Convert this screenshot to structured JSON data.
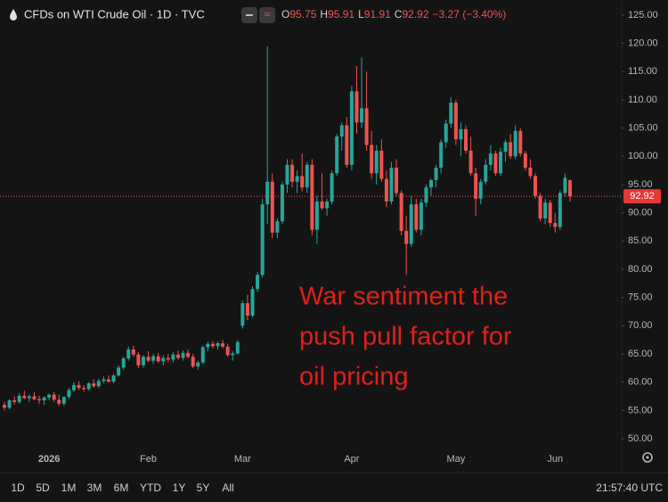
{
  "header": {
    "title": "CFDs on WTI Crude Oil · 1D · TVC",
    "ohlc": [
      {
        "key": "O",
        "value": 95.75
      },
      {
        "key": "H",
        "value": 95.91
      },
      {
        "key": "L",
        "value": 91.91
      },
      {
        "key": "C",
        "value": 92.92
      }
    ],
    "change": "−3.27 (−3.40%)"
  },
  "toolbar": {
    "ranges": [
      "1D",
      "5D",
      "1M",
      "3M",
      "6M",
      "YTD",
      "1Y",
      "5Y",
      "All"
    ],
    "clock": "21:57:40 UTC"
  },
  "chart_data": {
    "type": "candlestick",
    "annotation": [
      "War sentiment the",
      "push pull factor for",
      "oil pricing"
    ],
    "up_color": "#26a69a",
    "down_color": "#ef5350",
    "last_price": 92.92,
    "ylim": [
      47.95,
      127.68
    ],
    "yticks": [
      {
        "value": 50,
        "label": "50.00"
      },
      {
        "value": 55,
        "label": "55.00"
      },
      {
        "value": 60,
        "label": "60.00"
      },
      {
        "value": 65,
        "label": "65.00"
      },
      {
        "value": 70,
        "label": "70.00"
      },
      {
        "value": 75,
        "label": "75.00"
      },
      {
        "value": 80,
        "label": "80.00"
      },
      {
        "value": 85,
        "label": "85.00"
      },
      {
        "value": 90,
        "label": "90.00"
      },
      {
        "value": 95,
        "label": "95.00"
      },
      {
        "value": 100,
        "label": "100.00"
      },
      {
        "value": 105,
        "label": "105.00"
      },
      {
        "value": 110,
        "label": "110.00"
      },
      {
        "value": 115,
        "label": "115.00"
      },
      {
        "value": 120,
        "label": "120.00"
      },
      {
        "value": 125,
        "label": "125.00"
      }
    ],
    "categories": [
      null,
      null,
      null,
      null,
      null,
      null,
      null,
      null,
      null,
      "2026",
      null,
      null,
      null,
      null,
      null,
      null,
      null,
      null,
      null,
      null,
      null,
      null,
      null,
      null,
      null,
      null,
      null,
      null,
      null,
      "Feb",
      null,
      null,
      null,
      null,
      null,
      null,
      null,
      null,
      null,
      null,
      null,
      null,
      null,
      null,
      null,
      null,
      null,
      null,
      "Mar",
      null,
      null,
      null,
      null,
      null,
      null,
      null,
      null,
      null,
      null,
      null,
      null,
      null,
      null,
      null,
      null,
      null,
      null,
      null,
      null,
      null,
      "Apr",
      null,
      null,
      null,
      null,
      null,
      null,
      null,
      null,
      null,
      null,
      null,
      null,
      null,
      null,
      null,
      null,
      null,
      null,
      null,
      null,
      "May",
      null,
      null,
      null,
      null,
      null,
      null,
      null,
      null,
      null,
      null,
      null,
      null,
      null,
      null,
      null,
      null,
      null,
      null,
      null,
      "Jun",
      null,
      null,
      null
    ],
    "open": [
      56,
      55.5,
      56.8,
      56.5,
      57.6,
      57.2,
      57.5,
      57,
      56.8,
      57.3,
      57.8,
      56.9,
      56.2,
      57.4,
      58.6,
      59.5,
      59,
      58.8,
      59.8,
      59.3,
      60.2,
      60.5,
      60.1,
      61.2,
      62.6,
      64.2,
      65.8,
      64.9,
      63,
      64.5,
      63.8,
      64.6,
      63.7,
      64.3,
      64,
      64.9,
      64.3,
      65.2,
      64.5,
      62.8,
      63.5,
      66.2,
      66.8,
      66.4,
      66.9,
      66.3,
      64.8,
      65.1,
      70,
      74,
      71.8,
      76.5,
      79,
      91.5,
      95.5,
      86.5,
      88.5,
      95,
      98.5,
      95.5,
      96.5,
      94.5,
      98.5,
      87,
      92,
      90.8,
      92,
      97,
      103.5,
      105.5,
      98.5,
      111.5,
      106,
      108.5,
      102,
      97,
      101,
      96,
      92,
      98,
      93.5,
      86.8,
      84.5,
      91.5,
      87,
      91.8,
      94.5,
      95.8,
      98,
      102.5,
      105.8,
      109.5,
      103,
      104.8,
      101,
      97,
      92.5,
      95.5,
      98.5,
      100.5,
      97,
      100.8,
      102.5,
      100,
      104.5,
      100.5,
      98,
      96.5,
      93,
      89,
      91.8,
      88.2,
      87.5,
      93.5,
      95.75
    ],
    "high": [
      56.5,
      57,
      57.5,
      58,
      58.5,
      57.8,
      58.2,
      57.6,
      57.5,
      58,
      58.3,
      57.8,
      57.5,
      59,
      60,
      60.2,
      59.5,
      60,
      60.5,
      60.6,
      61,
      61.2,
      61.5,
      63,
      64.5,
      66.3,
      66.5,
      65.3,
      64.8,
      65.5,
      65,
      65.2,
      64.8,
      65,
      65.3,
      65.6,
      65.6,
      65.8,
      65,
      63.8,
      66.5,
      67.2,
      67.3,
      67.2,
      67.5,
      66.8,
      65.5,
      67.5,
      74.5,
      75.5,
      77,
      79.5,
      92.5,
      119.5,
      97,
      89,
      95.5,
      99.5,
      99.5,
      97.5,
      100.5,
      99,
      99.5,
      93,
      97,
      92.5,
      97.5,
      104,
      106,
      107,
      112.5,
      116,
      117.5,
      115,
      104.5,
      102,
      103,
      97.5,
      99,
      99.5,
      94,
      89.5,
      93,
      92.5,
      92.5,
      95,
      96,
      98.5,
      103,
      106.5,
      110.5,
      110,
      106,
      105.5,
      103.5,
      98,
      96,
      99.5,
      102,
      101,
      101.5,
      103,
      104,
      105.5,
      105,
      101,
      99.5,
      97,
      93.5,
      92.5,
      92.3,
      90,
      94,
      97,
      95.91
    ],
    "low": [
      55,
      55.2,
      56,
      56.2,
      57,
      56.5,
      56.8,
      56.2,
      56,
      56.8,
      56.5,
      55.8,
      55.8,
      57,
      58.2,
      58.6,
      58.3,
      58.5,
      59,
      59,
      59.8,
      59.9,
      59.8,
      61,
      62.2,
      63.8,
      64.5,
      62.5,
      62.6,
      63.5,
      63.2,
      63.4,
      63,
      63.6,
      63.5,
      64,
      63.8,
      64.2,
      62.5,
      62.2,
      63.2,
      65.5,
      66,
      65.8,
      66,
      64.5,
      63.8,
      64.9,
      69.5,
      71,
      71.5,
      76,
      78.5,
      88,
      85.5,
      85.5,
      88,
      93.5,
      94.5,
      93.5,
      93.8,
      93.5,
      86,
      84.5,
      90.5,
      89.5,
      91.5,
      96.5,
      101,
      98,
      97.5,
      104,
      105,
      101,
      96,
      95,
      95.5,
      91,
      91.5,
      93,
      86,
      79,
      84,
      86.5,
      86,
      91,
      93,
      94.5,
      97,
      101.5,
      105,
      102,
      100,
      100.5,
      96.5,
      89.5,
      91.5,
      95,
      97.5,
      96.5,
      96.5,
      99,
      99.5,
      99.5,
      100,
      97.5,
      96,
      92.5,
      88.5,
      88,
      87.5,
      86.5,
      87,
      93,
      91.91
    ],
    "close": [
      55.5,
      56.8,
      56.5,
      57.6,
      57.2,
      57.5,
      57,
      56.8,
      57.3,
      57.8,
      56.9,
      56.2,
      57.4,
      58.6,
      59.5,
      59,
      58.8,
      59.8,
      59.3,
      60.2,
      60.5,
      60.1,
      61.2,
      62.6,
      64.2,
      65.8,
      64.9,
      63,
      64.5,
      63.8,
      64.6,
      63.7,
      64.3,
      64,
      64.9,
      64.3,
      65.2,
      64.5,
      62.8,
      63.5,
      66.2,
      66.8,
      66.4,
      66.9,
      66.3,
      64.8,
      65.1,
      67.1,
      74,
      71.8,
      76.5,
      79,
      91.5,
      95.5,
      86.5,
      88.5,
      95,
      98.5,
      95.5,
      96.5,
      94.5,
      98.5,
      87,
      92,
      90.8,
      92,
      97,
      103.5,
      105.5,
      98.5,
      111.5,
      106,
      108.5,
      102,
      97,
      101,
      96,
      92,
      98,
      93.5,
      86.8,
      84.5,
      91.5,
      87,
      91.8,
      94.5,
      95.8,
      98,
      102.5,
      105.8,
      109.5,
      103,
      104.8,
      101,
      97,
      92.5,
      95.5,
      98.5,
      100.5,
      97,
      100.8,
      102.5,
      100,
      104.5,
      100.5,
      98,
      96.5,
      93,
      89,
      91.8,
      88.2,
      87.5,
      93.5,
      96.19,
      92.92
    ]
  }
}
